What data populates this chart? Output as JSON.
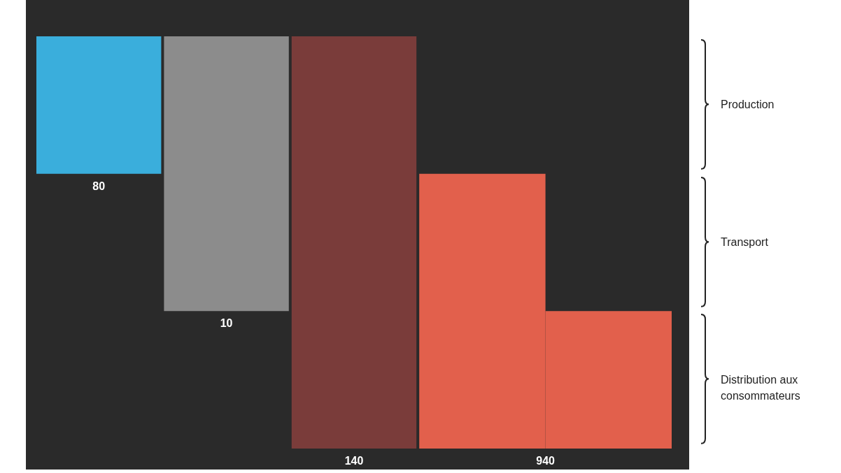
{
  "chart_data": {
    "type": "other",
    "values": [
      80,
      10,
      140,
      940
    ],
    "data_labels": true,
    "colors": [
      "#3aaedc",
      "#8c8c8c",
      "#7a3c3a",
      "#e2604c"
    ],
    "y_categories": [
      "Production",
      "Transport",
      "Distribution aux consommateurs"
    ]
  }
}
